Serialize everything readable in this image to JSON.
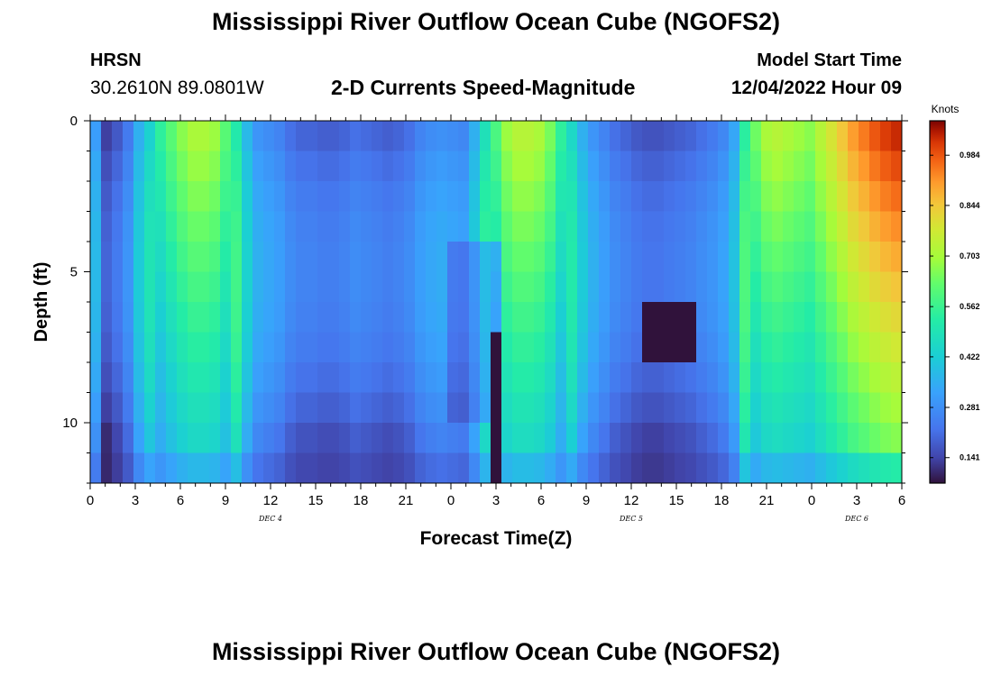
{
  "header": {
    "main_title": "Mississippi River Outflow Ocean Cube (NGOFS2)",
    "station_name": "HRSN",
    "station_coords": "30.2610N  89.0801W",
    "plot_title": "2-D Currents Speed-Magnitude",
    "model_label": "Model Start Time",
    "model_date": "12/04/2022 Hour 09"
  },
  "footer": {
    "bottom_title": "Mississippi River Outflow Ocean Cube (NGOFS2)"
  },
  "chart_data": {
    "type": "heatmap",
    "title": "2-D Currents Speed-Magnitude",
    "xlabel": "Forecast Time(Z)",
    "ylabel": "Depth (ft)",
    "x_range_hours": [
      0,
      54
    ],
    "y_range_ft": [
      0,
      12
    ],
    "x_ticks": [
      {
        "h": 0,
        "label": "0"
      },
      {
        "h": 3,
        "label": "3"
      },
      {
        "h": 6,
        "label": "6"
      },
      {
        "h": 9,
        "label": "9"
      },
      {
        "h": 12,
        "label": "12"
      },
      {
        "h": 15,
        "label": "15"
      },
      {
        "h": 18,
        "label": "18"
      },
      {
        "h": 21,
        "label": "21"
      },
      {
        "h": 24,
        "label": "0"
      },
      {
        "h": 27,
        "label": "3"
      },
      {
        "h": 30,
        "label": "6"
      },
      {
        "h": 33,
        "label": "9"
      },
      {
        "h": 36,
        "label": "12"
      },
      {
        "h": 39,
        "label": "15"
      },
      {
        "h": 42,
        "label": "18"
      },
      {
        "h": 45,
        "label": "21"
      },
      {
        "h": 48,
        "label": "0"
      },
      {
        "h": 51,
        "label": "3"
      },
      {
        "h": 54,
        "label": "6"
      }
    ],
    "date_labels": [
      {
        "h": 12,
        "label": "DEC 4"
      },
      {
        "h": 36,
        "label": "DEC 5"
      },
      {
        "h": 51,
        "label": "DEC 6"
      }
    ],
    "y_ticks": [
      {
        "ft": 0,
        "label": "0"
      },
      {
        "ft": 5,
        "label": "5"
      },
      {
        "ft": 10,
        "label": "10"
      }
    ],
    "colorbar": {
      "unit": "Knots",
      "min": 0.07,
      "max": 1.08,
      "ticks": [
        "0.141",
        "0.281",
        "0.422",
        "0.562",
        "0.703",
        "0.844",
        "0.984"
      ]
    },
    "surface_speed_knots": [
      0.28,
      0.1,
      0.14,
      0.2,
      0.32,
      0.4,
      0.55,
      0.62,
      0.68,
      0.72,
      0.72,
      0.7,
      0.62,
      0.48,
      0.34,
      0.26,
      0.24,
      0.22,
      0.18,
      0.16,
      0.16,
      0.15,
      0.15,
      0.16,
      0.18,
      0.17,
      0.16,
      0.15,
      0.16,
      0.18,
      0.22,
      0.24,
      0.25,
      0.24,
      0.23,
      0.32,
      0.45,
      0.6,
      0.7,
      0.74,
      0.74,
      0.72,
      0.66,
      0.55,
      0.42,
      0.32,
      0.26,
      0.22,
      0.18,
      0.16,
      0.14,
      0.13,
      0.13,
      0.14,
      0.15,
      0.16,
      0.18,
      0.2,
      0.23,
      0.3,
      0.5,
      0.65,
      0.72,
      0.74,
      0.72,
      0.7,
      0.68,
      0.74,
      0.8,
      0.86,
      0.92,
      0.96,
      1.0,
      1.03,
      1.05
    ]
  }
}
